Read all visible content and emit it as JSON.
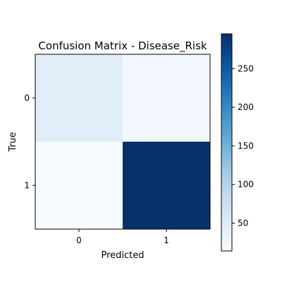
{
  "chart_data": {
    "type": "heatmap",
    "title": "Confusion Matrix - Disease_Risk",
    "xlabel": "Predicted",
    "ylabel": "True",
    "x_categories": [
      "0",
      "1"
    ],
    "y_categories": [
      "0",
      "1"
    ],
    "values": [
      [
        45,
        22
      ],
      [
        14,
        295
      ]
    ],
    "colormap": "Blues",
    "colorbar": {
      "range": [
        14,
        295
      ],
      "ticks": [
        50,
        100,
        150,
        200,
        250
      ]
    },
    "grid": false,
    "legend": "none"
  }
}
